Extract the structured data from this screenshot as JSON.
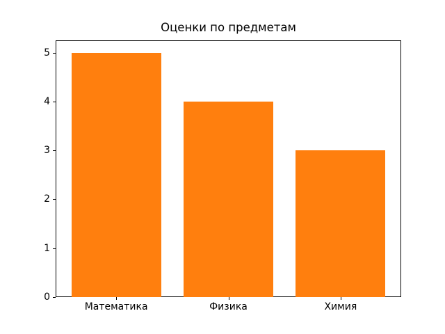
{
  "chart_data": {
    "type": "bar",
    "title": "Оценки по предметам",
    "categories": [
      "Математика",
      "Физика",
      "Химия"
    ],
    "values": [
      5,
      4,
      3
    ],
    "yticks": [
      0,
      1,
      2,
      3,
      4,
      5
    ],
    "xlabel": "",
    "ylabel": "",
    "ylim": [
      0,
      5.25
    ],
    "xlim": [
      -0.54,
      2.54
    ],
    "bar_width": 0.8,
    "grid": false,
    "legend": null,
    "colors": {
      "bar": "#ff7f0e",
      "spine": "#000000",
      "text": "#000000",
      "background": "#ffffff"
    }
  }
}
